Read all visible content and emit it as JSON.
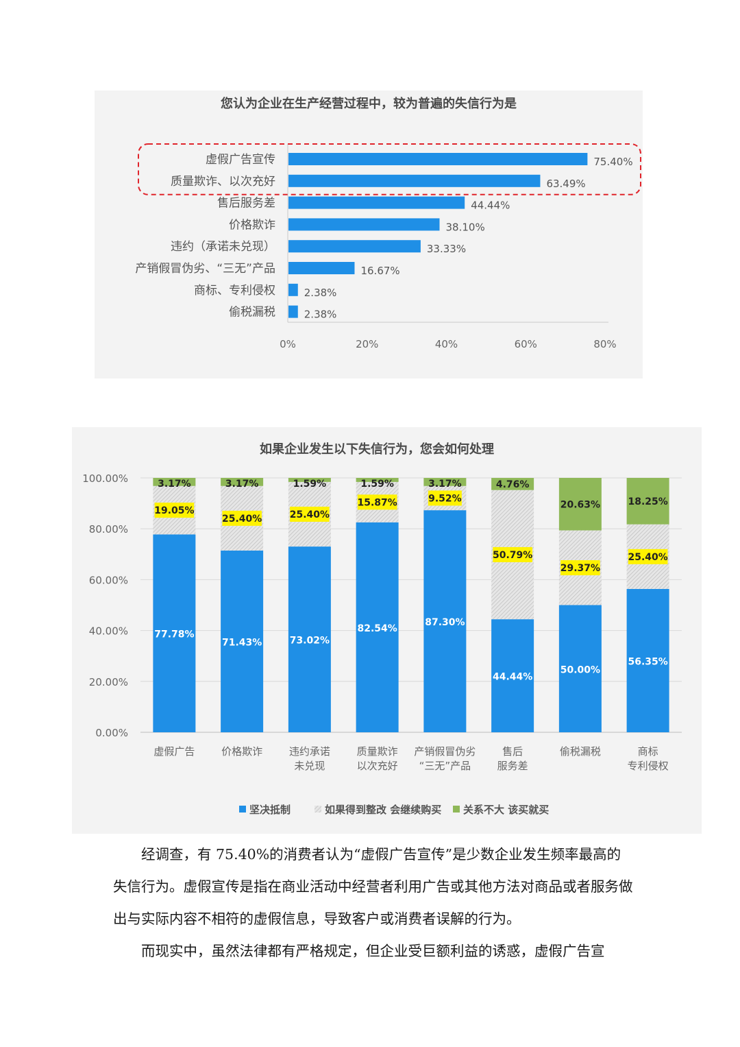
{
  "chart_data": [
    {
      "type": "bar",
      "orientation": "horizontal",
      "title": "您认为企业在生产经营过程中，较为普遍的失信行为是",
      "categories": [
        "虚假广告宣传",
        "质量欺诈、以次充好",
        "售后服务差",
        "价格欺诈",
        "违约（承诺未兑现）",
        "产销假冒伪劣、“三无”产品",
        "商标、专利侵权",
        "偷税漏税"
      ],
      "values": [
        75.4,
        63.49,
        44.44,
        38.1,
        33.33,
        16.67,
        2.38,
        2.38
      ],
      "data_labels": [
        "75.40%",
        "63.49%",
        "44.44%",
        "38.10%",
        "33.33%",
        "16.67%",
        "2.38%",
        "2.38%"
      ],
      "xlim": [
        0,
        80
      ],
      "x_ticks": [
        "0%",
        "20%",
        "40%",
        "60%",
        "80%"
      ],
      "highlighted_categories": [
        0,
        1
      ],
      "bar_color": "#1f8fe6"
    },
    {
      "type": "bar",
      "stacked": true,
      "title": "如果企业发生以下失信行为，您会如何处理",
      "categories": [
        [
          "虚假广告"
        ],
        [
          "价格欺诈"
        ],
        [
          "违约承诺",
          "未兑现"
        ],
        [
          "质量欺诈",
          "以次充好"
        ],
        [
          "产销假冒伪劣",
          "“三无”产品"
        ],
        [
          "售后",
          "服务差"
        ],
        [
          "偷税漏税"
        ],
        [
          "商标",
          "专利侵权"
        ]
      ],
      "series": [
        {
          "name": "坚决抵制",
          "color": "#1f8fe6",
          "values": [
            77.78,
            71.43,
            73.02,
            82.54,
            87.3,
            44.44,
            50.0,
            56.35
          ],
          "labels": [
            "77.78%",
            "71.43%",
            "73.02%",
            "82.54%",
            "87.30%",
            "44.44%",
            "50.00%",
            "56.35%"
          ]
        },
        {
          "name": "如果得到整改 会继续购买",
          "color": "#d4d4d4",
          "values": [
            19.05,
            25.4,
            25.4,
            15.87,
            9.52,
            50.79,
            29.37,
            25.4
          ],
          "labels": [
            "19.05%",
            "25.40%",
            "25.40%",
            "15.87%",
            "9.52%",
            "50.79%",
            "29.37%",
            "25.40%"
          ]
        },
        {
          "name": "关系不大 该买就买",
          "color": "#8fb858",
          "values": [
            3.17,
            3.17,
            1.59,
            1.59,
            3.17,
            4.76,
            20.63,
            18.25
          ],
          "labels": [
            "3.17%",
            "3.17%",
            "1.59%",
            "1.59%",
            "3.17%",
            "4.76%",
            "20.63%",
            "18.25%"
          ]
        }
      ],
      "ylim": [
        0,
        100
      ],
      "y_ticks": [
        "0.00%",
        "20.00%",
        "40.00%",
        "60.00%",
        "80.00%",
        "100.00%"
      ],
      "highlight_color": "#fff200",
      "legend_position": "bottom"
    }
  ],
  "text": {
    "para1": "经调查，有 75.40%的消费者认为“虚假广告宣传”是少数企业发生频率最高的失信行为。虚假宣传是指在商业活动中经营者利用广告或其他方法对商品或者服务做出与实际内容不相符的虚假信息，导致客户或消费者误解的行为。",
    "para2": "而现实中，虽然法律都有严格规定，但企业受巨额利益的诱惑，虚假广告宣"
  }
}
